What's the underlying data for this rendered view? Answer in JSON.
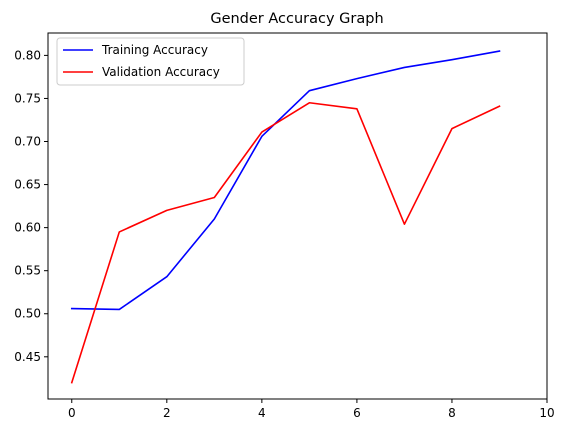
{
  "chart_data": {
    "type": "line",
    "title": "Gender Accuracy Graph",
    "xlabel": "",
    "ylabel": "",
    "xlim": [
      -0.5,
      10
    ],
    "ylim": [
      0.401,
      0.826
    ],
    "xticks": [
      0,
      2,
      4,
      6,
      8,
      10
    ],
    "yticks": [
      0.45,
      0.5,
      0.55,
      0.6,
      0.65,
      0.7,
      0.75,
      0.8
    ],
    "xtick_labels": [
      "0",
      "2",
      "4",
      "6",
      "8",
      "10"
    ],
    "ytick_labels": [
      "0.45",
      "0.50",
      "0.55",
      "0.60",
      "0.65",
      "0.70",
      "0.75",
      "0.80"
    ],
    "grid": false,
    "legend_position": "top-left",
    "x": [
      0,
      1,
      2,
      3,
      4,
      5,
      6,
      7,
      8,
      9
    ],
    "series": [
      {
        "name": "Training Accuracy",
        "color": "#0000ff",
        "values": [
          0.506,
          0.505,
          0.543,
          0.61,
          0.706,
          0.759,
          0.773,
          0.786,
          0.795,
          0.805
        ]
      },
      {
        "name": "Validation Accuracy",
        "color": "#ff0000",
        "values": [
          0.42,
          0.595,
          0.62,
          0.635,
          0.711,
          0.745,
          0.738,
          0.604,
          0.715,
          0.741
        ]
      }
    ]
  }
}
